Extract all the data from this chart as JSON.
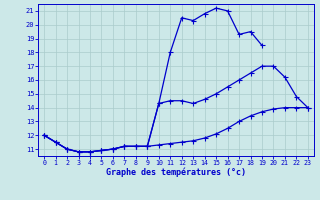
{
  "title": "Graphe des températures (°c)",
  "bg_color": "#cce8e8",
  "grid_color": "#aacccc",
  "line_color": "#0000cc",
  "yticks": [
    11,
    12,
    13,
    14,
    15,
    16,
    17,
    18,
    19,
    20,
    21
  ],
  "xticks": [
    0,
    1,
    2,
    3,
    4,
    5,
    6,
    7,
    8,
    9,
    10,
    11,
    12,
    13,
    14,
    15,
    16,
    17,
    18,
    19,
    20,
    21,
    22,
    23
  ],
  "line1_y": [
    12.0,
    11.5,
    11.0,
    10.8,
    10.8,
    10.9,
    11.0,
    11.2,
    11.2,
    11.2,
    14.3,
    18.0,
    20.5,
    20.3,
    20.8,
    21.2,
    21.0,
    19.3,
    19.5,
    18.5,
    null,
    null,
    null,
    null
  ],
  "line2_y": [
    12.0,
    11.5,
    11.0,
    10.8,
    10.8,
    10.9,
    11.0,
    11.2,
    11.2,
    11.2,
    14.3,
    14.5,
    14.5,
    14.3,
    14.6,
    15.0,
    15.5,
    16.0,
    16.5,
    17.0,
    17.0,
    16.2,
    14.8,
    14.0
  ],
  "line3_y": [
    12.0,
    11.5,
    11.0,
    10.8,
    10.8,
    10.9,
    11.0,
    11.2,
    11.2,
    11.2,
    11.3,
    11.4,
    11.5,
    11.6,
    11.8,
    12.1,
    12.5,
    13.0,
    13.4,
    13.7,
    13.9,
    14.0,
    14.0,
    14.0
  ]
}
